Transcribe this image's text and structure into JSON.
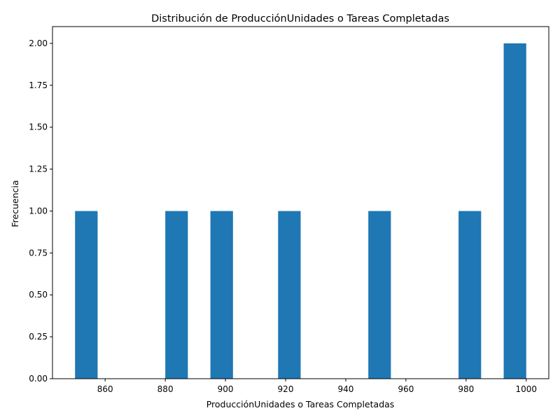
{
  "chart_data": {
    "type": "bar",
    "title": "Distribución de ProducciónUnidades o Tareas Completadas",
    "xlabel": "ProducciónUnidades o Tareas Completadas",
    "ylabel": "Frecuencia",
    "bin_range": [
      850,
      1000
    ],
    "bin_count": 20,
    "bins": [
      {
        "start": 850.0,
        "end": 857.5,
        "count": 1
      },
      {
        "start": 880.0,
        "end": 887.5,
        "count": 1
      },
      {
        "start": 895.0,
        "end": 902.5,
        "count": 1
      },
      {
        "start": 917.5,
        "end": 925.0,
        "count": 1
      },
      {
        "start": 947.5,
        "end": 955.0,
        "count": 1
      },
      {
        "start": 977.5,
        "end": 985.0,
        "count": 1
      },
      {
        "start": 992.5,
        "end": 1000.0,
        "count": 2
      }
    ],
    "xlim": [
      842.5,
      1007.5
    ],
    "ylim": [
      0,
      2.1
    ],
    "xticks": [
      860,
      880,
      900,
      920,
      940,
      960,
      980,
      1000
    ],
    "xtick_labels": [
      "860",
      "880",
      "900",
      "920",
      "940",
      "960",
      "980",
      "1000"
    ],
    "yticks": [
      0,
      0.25,
      0.5,
      0.75,
      1.0,
      1.25,
      1.5,
      1.75,
      2.0
    ],
    "ytick_labels": [
      "0.00",
      "0.25",
      "0.50",
      "0.75",
      "1.00",
      "1.25",
      "1.50",
      "1.75",
      "2.00"
    ],
    "grid": false,
    "bar_color": "#1f77b4"
  }
}
